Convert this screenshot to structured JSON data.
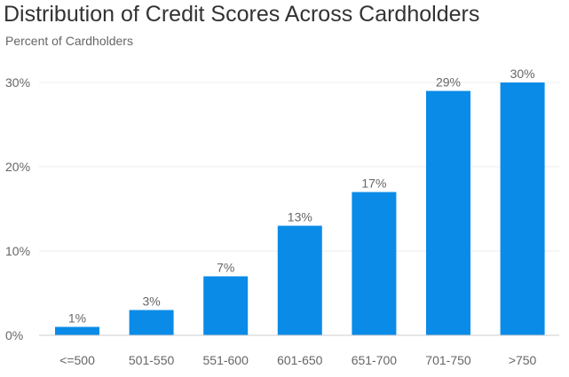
{
  "chart_data": {
    "type": "bar",
    "title": "Distribution of Credit Scores Across Cardholders",
    "subtitle": "Percent of Cardholders",
    "xlabel": "",
    "ylabel": "",
    "categories": [
      "<=500",
      "501-550",
      "551-600",
      "601-650",
      "651-700",
      "701-750",
      ">750"
    ],
    "values": [
      1,
      3,
      7,
      13,
      17,
      29,
      30
    ],
    "value_labels": [
      "1%",
      "3%",
      "7%",
      "13%",
      "17%",
      "29%",
      "30%"
    ],
    "ylim": [
      0,
      30
    ],
    "yticks": [
      0,
      10,
      20,
      30
    ],
    "ytick_labels": [
      "0%",
      "10%",
      "20%",
      "30%"
    ],
    "grid": true,
    "legend": "none",
    "colors": {
      "bar": "#0a8be8",
      "grid": "#ececec",
      "axis": "#cccccc",
      "tick_text": "#666666",
      "label_text": "#666666",
      "title_text": "#333333"
    }
  }
}
